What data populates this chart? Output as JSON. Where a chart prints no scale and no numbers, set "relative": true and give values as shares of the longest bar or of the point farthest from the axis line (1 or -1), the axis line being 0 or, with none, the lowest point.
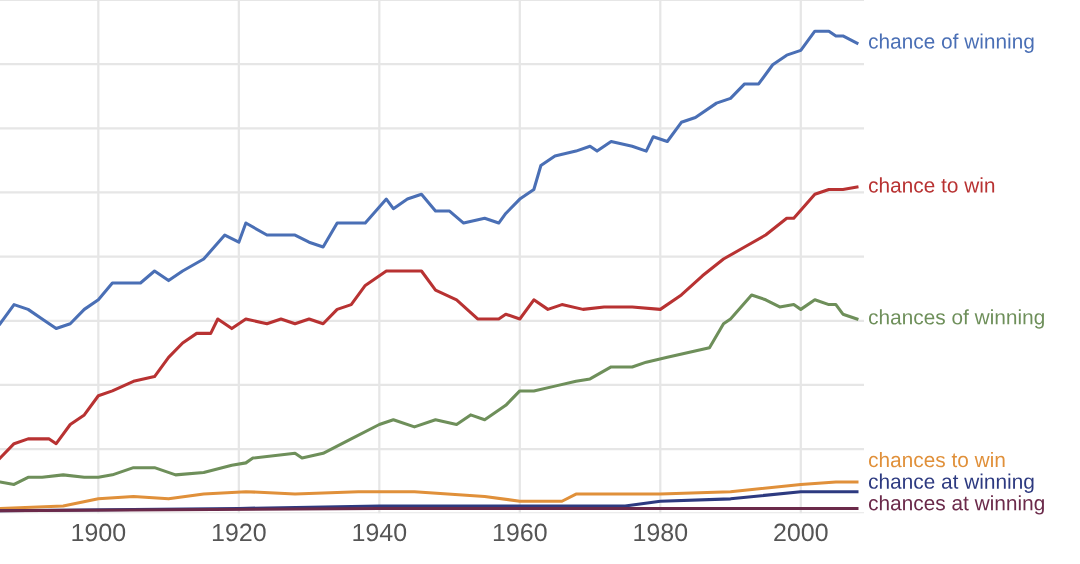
{
  "chart_data": {
    "type": "line",
    "relative": true,
    "legend": false,
    "grid": true,
    "tick_labels": "x",
    "line_style": "solid",
    "marker": "none",
    "xlim": [
      1886,
      2009
    ],
    "xticks": [
      1900,
      1920,
      1940,
      1960,
      1980,
      2000
    ],
    "series": [
      {
        "name": "chance of winning",
        "color": "#4a6fb5",
        "x": [
          1886,
          1888,
          1890,
          1892,
          1894,
          1896,
          1898,
          1900,
          1902,
          1906,
          1908,
          1910,
          1912,
          1915,
          1918,
          1920,
          1921,
          1924,
          1928,
          1930,
          1932,
          1934,
          1938,
          1941,
          1942,
          1944,
          1946,
          1948,
          1950,
          1952,
          1955,
          1957,
          1958,
          1960,
          1962,
          1963,
          1965,
          1968,
          1970,
          1971,
          1973,
          1976,
          1978,
          1979,
          1981,
          1983,
          1985,
          1988,
          1990,
          1992,
          1994,
          1996,
          1998,
          2000,
          2002,
          2004,
          2005,
          2006,
          2008
        ],
        "values": [
          0.39,
          0.43,
          0.42,
          0.4,
          0.38,
          0.39,
          0.42,
          0.44,
          0.475,
          0.475,
          0.5,
          0.48,
          0.5,
          0.525,
          0.575,
          0.56,
          0.6,
          0.575,
          0.575,
          0.56,
          0.55,
          0.6,
          0.6,
          0.65,
          0.63,
          0.65,
          0.66,
          0.625,
          0.625,
          0.6,
          0.61,
          0.6,
          0.62,
          0.65,
          0.67,
          0.72,
          0.74,
          0.75,
          0.76,
          0.75,
          0.77,
          0.76,
          0.75,
          0.78,
          0.77,
          0.81,
          0.82,
          0.85,
          0.86,
          0.89,
          0.89,
          0.93,
          0.95,
          0.96,
          1.0,
          1.0,
          0.99,
          0.99,
          0.975
        ]
      },
      {
        "name": "chance to win",
        "color": "#b83232",
        "x": [
          1886,
          1888,
          1890,
          1893,
          1894,
          1896,
          1898,
          1900,
          1902,
          1905,
          1908,
          1910,
          1912,
          1914,
          1916,
          1917,
          1919,
          1921,
          1924,
          1926,
          1928,
          1930,
          1932,
          1934,
          1936,
          1938,
          1941,
          1946,
          1948,
          1951,
          1954,
          1957,
          1958,
          1960,
          1962,
          1964,
          1966,
          1969,
          1972,
          1976,
          1980,
          1983,
          1986,
          1989,
          1992,
          1995,
          1998,
          1999,
          2002,
          2004,
          2006,
          2008
        ],
        "values": [
          0.11,
          0.14,
          0.15,
          0.15,
          0.14,
          0.18,
          0.2,
          0.24,
          0.25,
          0.27,
          0.28,
          0.32,
          0.35,
          0.37,
          0.37,
          0.4,
          0.38,
          0.4,
          0.39,
          0.4,
          0.39,
          0.4,
          0.39,
          0.42,
          0.43,
          0.47,
          0.5,
          0.5,
          0.46,
          0.44,
          0.4,
          0.4,
          0.41,
          0.4,
          0.44,
          0.42,
          0.43,
          0.42,
          0.425,
          0.425,
          0.42,
          0.45,
          0.49,
          0.525,
          0.55,
          0.575,
          0.61,
          0.61,
          0.66,
          0.67,
          0.67,
          0.675
        ]
      },
      {
        "name": "chances of winning",
        "color": "#6e8f5a",
        "x": [
          1886,
          1888,
          1890,
          1892,
          1895,
          1898,
          1900,
          1902,
          1905,
          1908,
          1911,
          1915,
          1919,
          1921,
          1922,
          1928,
          1929,
          1932,
          1936,
          1940,
          1942,
          1945,
          1948,
          1951,
          1953,
          1955,
          1958,
          1960,
          1962,
          1965,
          1968,
          1970,
          1973,
          1976,
          1978,
          1981,
          1984,
          1987,
          1989,
          1990,
          1993,
          1995,
          1997,
          1999,
          2000,
          2002,
          2004,
          2005,
          2006,
          2008
        ],
        "values": [
          0.06,
          0.055,
          0.07,
          0.07,
          0.075,
          0.07,
          0.07,
          0.075,
          0.09,
          0.09,
          0.075,
          0.08,
          0.095,
          0.1,
          0.11,
          0.12,
          0.11,
          0.12,
          0.15,
          0.18,
          0.19,
          0.175,
          0.19,
          0.18,
          0.2,
          0.19,
          0.22,
          0.25,
          0.25,
          0.26,
          0.27,
          0.275,
          0.3,
          0.3,
          0.31,
          0.32,
          0.33,
          0.34,
          0.39,
          0.4,
          0.45,
          0.44,
          0.425,
          0.43,
          0.42,
          0.44,
          0.43,
          0.43,
          0.41,
          0.4
        ]
      },
      {
        "name": "chances to win",
        "color": "#e0903a",
        "x": [
          1886,
          1895,
          1900,
          1905,
          1910,
          1915,
          1921,
          1928,
          1937,
          1945,
          1955,
          1960,
          1966,
          1968,
          1980,
          1990,
          2000,
          2005,
          2008
        ],
        "values": [
          0.005,
          0.01,
          0.025,
          0.03,
          0.025,
          0.035,
          0.04,
          0.035,
          0.04,
          0.04,
          0.03,
          0.02,
          0.02,
          0.035,
          0.035,
          0.04,
          0.055,
          0.06,
          0.06
        ]
      },
      {
        "name": "chance at winning",
        "color": "#2d3a80",
        "x": [
          1886,
          1920,
          1940,
          1960,
          1975,
          1980,
          1990,
          2000,
          2004,
          2008
        ],
        "values": [
          0,
          0.005,
          0.01,
          0.01,
          0.01,
          0.02,
          0.025,
          0.04,
          0.04,
          0.04
        ]
      },
      {
        "name": "chances at winning",
        "color": "#6b2a4a",
        "x": [
          1886,
          1940,
          2008
        ],
        "values": [
          0,
          0.005,
          0.005
        ]
      }
    ]
  }
}
